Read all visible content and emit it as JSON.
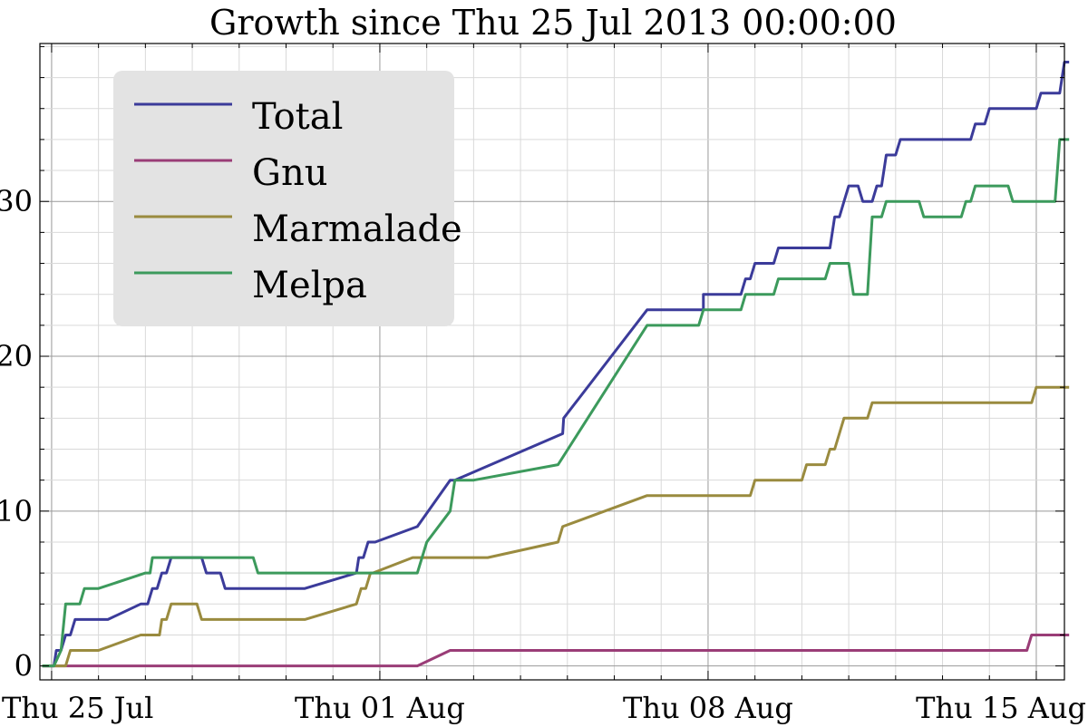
{
  "chart_data": {
    "type": "line",
    "title": "Growth since Thu 25 Jul 2013 00:00:00",
    "xlabel": "",
    "ylabel": "",
    "x_unit": "days since Thu 25 Jul 2013",
    "xlim": [
      -0.25,
      21.6
    ],
    "ylim": [
      -0.9,
      40.2
    ],
    "x_ticks": [
      {
        "value": 0,
        "label": "Thu 25 Jul"
      },
      {
        "value": 7,
        "label": "Thu 01 Aug"
      },
      {
        "value": 14,
        "label": "Thu 08 Aug"
      },
      {
        "value": 21,
        "label": "Thu 15 Aug"
      }
    ],
    "y_ticks": [
      {
        "value": 0,
        "label": "0"
      },
      {
        "value": 10,
        "label": "10"
      },
      {
        "value": 20,
        "label": "20"
      },
      {
        "value": 30,
        "label": "30"
      }
    ],
    "grid": true,
    "legend": {
      "position": "top-left"
    },
    "series": [
      {
        "name": "Total",
        "color": "#3b3b9a",
        "points": [
          [
            -0.2,
            0
          ],
          [
            0.05,
            0
          ],
          [
            0.1,
            1
          ],
          [
            0.2,
            1
          ],
          [
            0.3,
            2
          ],
          [
            0.4,
            2
          ],
          [
            0.5,
            3
          ],
          [
            1.2,
            3
          ],
          [
            1.9,
            4
          ],
          [
            2.05,
            4
          ],
          [
            2.15,
            5
          ],
          [
            2.25,
            5
          ],
          [
            2.35,
            6
          ],
          [
            2.45,
            6
          ],
          [
            2.55,
            7
          ],
          [
            3.2,
            7
          ],
          [
            3.3,
            6
          ],
          [
            3.6,
            6
          ],
          [
            3.7,
            5
          ],
          [
            4.6,
            5
          ],
          [
            5.4,
            5
          ],
          [
            6.5,
            6
          ],
          [
            6.55,
            7
          ],
          [
            6.65,
            7
          ],
          [
            6.75,
            8
          ],
          [
            6.9,
            8
          ],
          [
            7.8,
            9
          ],
          [
            8.5,
            12
          ],
          [
            8.6,
            12
          ],
          [
            10.9,
            15
          ],
          [
            10.92,
            16
          ],
          [
            12.7,
            23
          ],
          [
            13.9,
            23
          ],
          [
            13.9,
            24
          ],
          [
            14.7,
            24
          ],
          [
            14.8,
            25
          ],
          [
            14.9,
            25
          ],
          [
            15.0,
            26
          ],
          [
            15.4,
            26
          ],
          [
            15.5,
            27
          ],
          [
            16.6,
            27
          ],
          [
            16.7,
            29
          ],
          [
            16.8,
            29
          ],
          [
            16.9,
            30
          ],
          [
            17.0,
            31
          ],
          [
            17.2,
            31
          ],
          [
            17.3,
            30
          ],
          [
            17.5,
            30
          ],
          [
            17.6,
            31
          ],
          [
            17.7,
            31
          ],
          [
            17.8,
            33
          ],
          [
            18.0,
            33
          ],
          [
            18.1,
            34
          ],
          [
            19.0,
            34
          ],
          [
            19.6,
            34
          ],
          [
            19.7,
            35
          ],
          [
            19.9,
            35
          ],
          [
            20.0,
            36
          ],
          [
            21.0,
            36
          ],
          [
            21.1,
            37
          ],
          [
            21.5,
            37
          ],
          [
            21.6,
            39
          ],
          [
            21.7,
            39
          ]
        ]
      },
      {
        "name": "Gnu",
        "color": "#9a3d77",
        "points": [
          [
            -0.2,
            0
          ],
          [
            7.8,
            0
          ],
          [
            8.5,
            1
          ],
          [
            9.5,
            1
          ],
          [
            20.8,
            1
          ],
          [
            20.9,
            2
          ],
          [
            21.7,
            2
          ]
        ]
      },
      {
        "name": "Marmalade",
        "color": "#9a8b3f",
        "points": [
          [
            -0.2,
            0
          ],
          [
            0.3,
            0
          ],
          [
            0.4,
            1
          ],
          [
            1.0,
            1
          ],
          [
            1.9,
            2
          ],
          [
            2.3,
            2
          ],
          [
            2.35,
            3
          ],
          [
            2.45,
            3
          ],
          [
            2.55,
            4
          ],
          [
            3.1,
            4
          ],
          [
            3.2,
            3
          ],
          [
            4.0,
            3
          ],
          [
            5.4,
            3
          ],
          [
            6.5,
            4
          ],
          [
            6.6,
            5
          ],
          [
            6.7,
            5
          ],
          [
            6.8,
            6
          ],
          [
            6.85,
            6
          ],
          [
            7.7,
            7
          ],
          [
            8.9,
            7
          ],
          [
            9.3,
            7
          ],
          [
            10.8,
            8
          ],
          [
            10.9,
            9
          ],
          [
            12.7,
            11
          ],
          [
            14.0,
            11
          ],
          [
            14.9,
            11
          ],
          [
            15.0,
            12
          ],
          [
            16.0,
            12
          ],
          [
            16.1,
            13
          ],
          [
            16.5,
            13
          ],
          [
            16.6,
            14
          ],
          [
            16.7,
            14
          ],
          [
            16.9,
            16
          ],
          [
            17.4,
            16
          ],
          [
            17.5,
            17
          ],
          [
            20.0,
            17
          ],
          [
            20.9,
            17
          ],
          [
            21.0,
            18
          ],
          [
            21.7,
            18
          ]
        ]
      },
      {
        "name": "Melpa",
        "color": "#3c9a5c",
        "points": [
          [
            -0.2,
            0
          ],
          [
            0.05,
            0
          ],
          [
            0.2,
            1
          ],
          [
            0.3,
            4
          ],
          [
            0.6,
            4
          ],
          [
            0.7,
            5
          ],
          [
            1.0,
            5
          ],
          [
            2.0,
            6
          ],
          [
            2.1,
            6
          ],
          [
            2.15,
            7
          ],
          [
            3.0,
            7
          ],
          [
            4.3,
            7
          ],
          [
            4.4,
            6
          ],
          [
            5.5,
            6
          ],
          [
            6.8,
            6
          ],
          [
            7.8,
            6
          ],
          [
            8.0,
            8
          ],
          [
            8.5,
            10
          ],
          [
            8.6,
            12
          ],
          [
            9.0,
            12
          ],
          [
            10.8,
            13
          ],
          [
            12.7,
            22
          ],
          [
            13.2,
            22
          ],
          [
            13.8,
            22
          ],
          [
            13.9,
            23
          ],
          [
            14.7,
            23
          ],
          [
            14.8,
            24
          ],
          [
            15.4,
            24
          ],
          [
            15.5,
            25
          ],
          [
            16.5,
            25
          ],
          [
            16.6,
            26
          ],
          [
            17.0,
            26
          ],
          [
            17.1,
            24
          ],
          [
            17.4,
            24
          ],
          [
            17.5,
            29
          ],
          [
            17.7,
            29
          ],
          [
            17.8,
            30
          ],
          [
            18.5,
            30
          ],
          [
            18.6,
            29
          ],
          [
            19.4,
            29
          ],
          [
            19.5,
            30
          ],
          [
            19.6,
            30
          ],
          [
            19.7,
            31
          ],
          [
            20.4,
            31
          ],
          [
            20.5,
            30
          ],
          [
            21.0,
            30
          ],
          [
            21.4,
            30
          ],
          [
            21.5,
            34
          ],
          [
            21.7,
            34
          ]
        ]
      }
    ]
  }
}
